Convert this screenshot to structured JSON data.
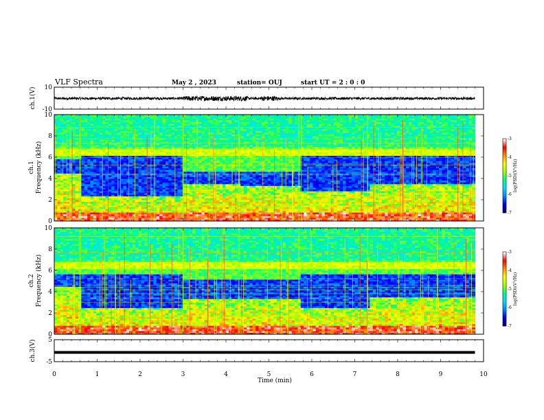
{
  "header": {
    "title": "VLF Spectra",
    "date": "May 2 , 2023",
    "station": "station= OUJ",
    "start": "start UT = 2 : 0 : 0"
  },
  "colors": {
    "background": "#ffffff",
    "trace": "#000000",
    "spectrogram_scale": [
      "#00007a",
      "#0000ff",
      "#0090ff",
      "#00e0ff",
      "#00ff80",
      "#aaff00",
      "#ffff00",
      "#ff9000",
      "#ff0000",
      "#ffffff"
    ]
  },
  "chart_data": [
    {
      "type": "line",
      "panel": "ch1-waveform",
      "ylabel": "ch.1(V)",
      "ylim": [
        -10,
        10
      ],
      "ytick_labels": [
        "10",
        "-10"
      ],
      "xlim": [
        0,
        10
      ],
      "approx_amplitude_V": 1.2,
      "burst_intervals_min": [
        [
          3.0,
          4.5
        ],
        [
          4.8,
          5.2
        ]
      ]
    },
    {
      "type": "heatmap",
      "panel": "ch1-spectrogram",
      "ylabel": "Frequency (kHz)",
      "ylabel_channel": "ch.1",
      "xlim": [
        0,
        9.8
      ],
      "ylim": [
        0,
        10
      ],
      "ytick_labels": [
        "0",
        "2",
        "4",
        "6",
        "8",
        "10"
      ],
      "colorbar": {
        "label": "log(PSD)(V²/Hz)",
        "range": [
          -7,
          -3
        ],
        "tick_labels": [
          "-3",
          "-4",
          "-5",
          "-6",
          "-7"
        ]
      },
      "segments": [
        {
          "t": [
            0.0,
            0.6
          ],
          "low_band_kHz": [
            4.5,
            5.8
          ]
        },
        {
          "t": [
            0.6,
            3.0
          ],
          "low_band_kHz": [
            2.2,
            6.0
          ]
        },
        {
          "t": [
            3.0,
            4.3
          ],
          "low_band_kHz": [
            3.5,
            4.5
          ]
        },
        {
          "t": [
            4.3,
            5.7
          ],
          "low_band_kHz": [
            3.3,
            4.5
          ]
        },
        {
          "t": [
            5.7,
            7.3
          ],
          "low_band_kHz": [
            2.8,
            6.0
          ]
        },
        {
          "t": [
            7.3,
            9.8
          ],
          "low_band_kHz": [
            3.5,
            6.0
          ]
        }
      ]
    },
    {
      "type": "heatmap",
      "panel": "ch2-spectrogram",
      "ylabel": "Frequency (kHz)",
      "ylabel_channel": "ch.2",
      "xlim": [
        0,
        9.8
      ],
      "ylim": [
        0,
        10
      ],
      "ytick_labels": [
        "0",
        "2",
        "4",
        "6",
        "8",
        "10"
      ],
      "colorbar": {
        "label": "log(PSD)(V²/Hz)",
        "range": [
          -7,
          -3
        ],
        "tick_labels": [
          "-3",
          "-4",
          "-5",
          "-6",
          "-7"
        ]
      },
      "segments": [
        {
          "t": [
            0.0,
            0.6
          ],
          "low_band_kHz": [
            4.5,
            5.5
          ]
        },
        {
          "t": [
            0.6,
            3.0
          ],
          "low_band_kHz": [
            2.5,
            5.5
          ]
        },
        {
          "t": [
            3.0,
            4.3
          ],
          "low_band_kHz": [
            3.2,
            5.0
          ]
        },
        {
          "t": [
            4.3,
            5.7
          ],
          "low_band_kHz": [
            3.2,
            5.0
          ]
        },
        {
          "t": [
            5.7,
            7.3
          ],
          "low_band_kHz": [
            2.5,
            5.5
          ]
        },
        {
          "t": [
            7.3,
            9.8
          ],
          "low_band_kHz": [
            3.5,
            5.5
          ]
        }
      ]
    },
    {
      "type": "line",
      "panel": "ch3-waveform",
      "ylabel": "ch.3(V)",
      "ylim": [
        -5,
        5
      ],
      "ytick_labels": [
        "5",
        "-5"
      ],
      "xlim": [
        0,
        9.8
      ],
      "approx_constant_V": -0.8
    }
  ],
  "xaxis": {
    "label": "Time (min)",
    "ticks": [
      "0",
      "1",
      "2",
      "3",
      "4",
      "5",
      "6",
      "7",
      "8",
      "9",
      "10"
    ],
    "range": [
      0,
      10
    ]
  }
}
